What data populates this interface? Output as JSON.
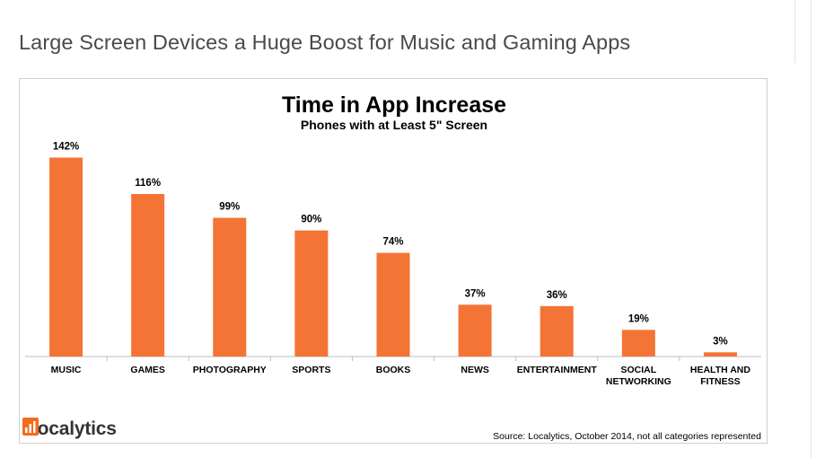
{
  "page": {
    "top_snippet_text": "",
    "top_snippet_link": "",
    "article_title": "Large Screen Devices a Huge Boost for Music and Gaming Apps"
  },
  "logo": {
    "name": "Localytics",
    "icon": "bar-chart-logo-icon"
  },
  "colors": {
    "bar": "#f47435",
    "axis": "#bdbdbd",
    "text": "#000000",
    "brand": "#f26b21"
  },
  "chart_data": {
    "type": "bar",
    "title": "Time in App Increase",
    "subtitle": "Phones with at Least 5\" Screen",
    "source": "Source: Localytics, October 2014, not all categories represented",
    "value_unit": "%",
    "ylim": [
      0,
      150
    ],
    "grid": false,
    "categories": [
      [
        "MUSIC"
      ],
      [
        "GAMES"
      ],
      [
        "PHOTOGRAPHY"
      ],
      [
        "SPORTS"
      ],
      [
        "BOOKS"
      ],
      [
        "NEWS"
      ],
      [
        "ENTERTAINMENT"
      ],
      [
        "SOCIAL",
        "NETWORKING"
      ],
      [
        "HEALTH AND",
        "FITNESS"
      ]
    ],
    "values": [
      142,
      116,
      99,
      90,
      74,
      37,
      36,
      19,
      3
    ],
    "data_labels": [
      "142%",
      "116%",
      "99%",
      "90%",
      "74%",
      "37%",
      "36%",
      "19%",
      "3%"
    ]
  }
}
